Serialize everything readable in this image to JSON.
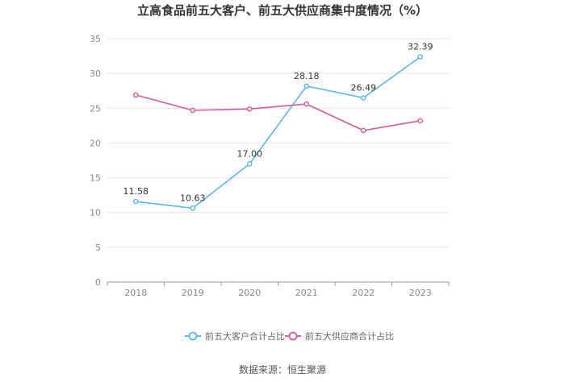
{
  "chart_data": {
    "type": "line",
    "title": "立高食品前五大客户、前五大供应商集中度情况（%）",
    "categories": [
      "2018",
      "2019",
      "2020",
      "2021",
      "2022",
      "2023"
    ],
    "ylim": [
      0,
      35
    ],
    "yticks": [
      0,
      5,
      10,
      15,
      20,
      25,
      30,
      35
    ],
    "grid": true,
    "legend_position": "bottom",
    "series": [
      {
        "name": "前五大客户合计占比",
        "color": "#4fbde8",
        "values": [
          11.58,
          10.63,
          17.0,
          28.18,
          26.49,
          32.39
        ],
        "labels": [
          "11.58",
          "10.63",
          "17.00",
          "28.18",
          "26.49",
          "32.39"
        ]
      },
      {
        "name": "前五大供应商合计占比",
        "color": "#d9579f",
        "values": [
          26.9,
          24.7,
          24.9,
          25.6,
          21.8,
          23.2
        ]
      }
    ]
  },
  "source": "数据来源：恒生聚源"
}
